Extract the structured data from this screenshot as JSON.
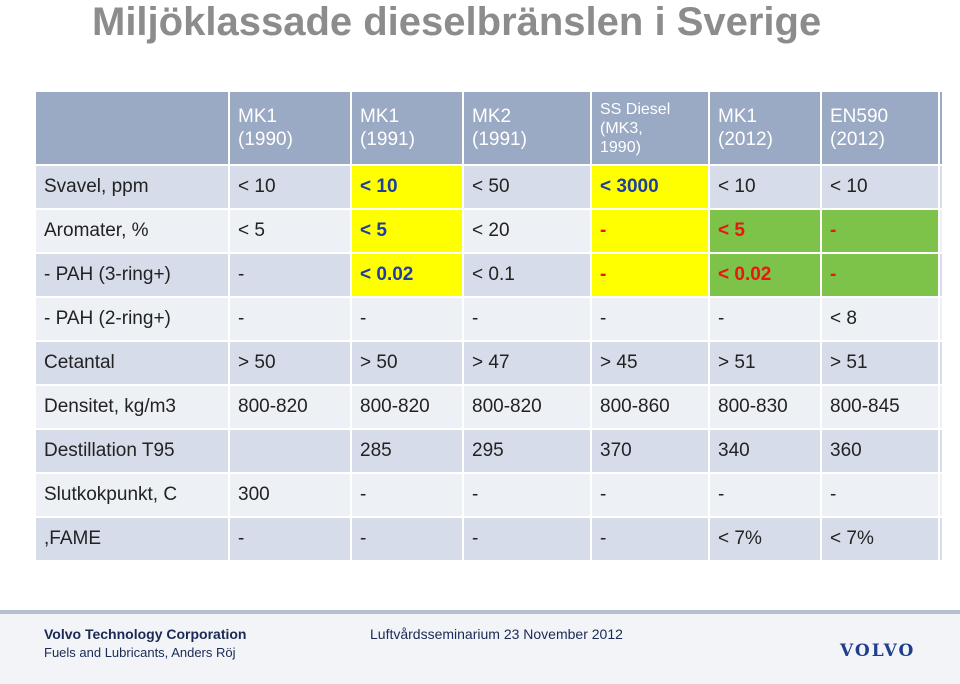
{
  "title": "Miljöklassade dieselbränslen i Sverige",
  "table": {
    "headers": [
      "",
      "MK1\n(1990)",
      "MK1\n(1991)",
      "MK2\n(1991)",
      "SS Diesel\n(MK3,\n1990)",
      "MK1\n(2012)",
      "EN590\n(2012)"
    ],
    "rows": [
      {
        "label": "Svavel, ppm",
        "cells": [
          "< 10",
          "< 10",
          "< 50",
          "< 3000",
          "< 10",
          "< 10"
        ]
      },
      {
        "label": "Aromater, %",
        "cells": [
          "< 5",
          "< 5",
          "< 20",
          "-",
          "< 5",
          "-"
        ]
      },
      {
        "label": "- PAH (3-ring+)",
        "cells": [
          "-",
          "< 0.02",
          "< 0.1",
          "-",
          "< 0.02",
          "-"
        ]
      },
      {
        "label": "- PAH (2-ring+)",
        "cells": [
          "-",
          "-",
          "-",
          "-",
          "-",
          "< 8"
        ]
      },
      {
        "label": "Cetantal",
        "cells": [
          "> 50",
          "> 50",
          "> 47",
          "> 45",
          "> 51",
          "> 51"
        ]
      },
      {
        "label": "Densitet, kg/m3",
        "cells": [
          "800-820",
          "800-820",
          "800-820",
          "800-860",
          "800-830",
          "800-845"
        ]
      },
      {
        "label": "Destillation T95",
        "cells": [
          "",
          "285",
          "295",
          "370",
          "340",
          "360"
        ]
      },
      {
        "label": "Slutkokpunkt, C",
        "cells": [
          "300",
          "-",
          "-",
          "-",
          "-",
          "-"
        ]
      },
      {
        "label": ",FAME",
        "cells": [
          "-",
          "-",
          "-",
          "-",
          "< 7%",
          "< 7%"
        ]
      }
    ]
  },
  "highlight_colors": {
    "yellow": "#ffff00",
    "green": "#7dc34a",
    "blue_text": "#1f3fa0",
    "red_text": "#e8170f"
  },
  "footer": {
    "company": "Volvo Technology Corporation",
    "dept": "Fuels and Lubricants,  Anders Röj",
    "event": "Luftvårdsseminarium 23 November 2012",
    "logo": "VOLVO"
  }
}
